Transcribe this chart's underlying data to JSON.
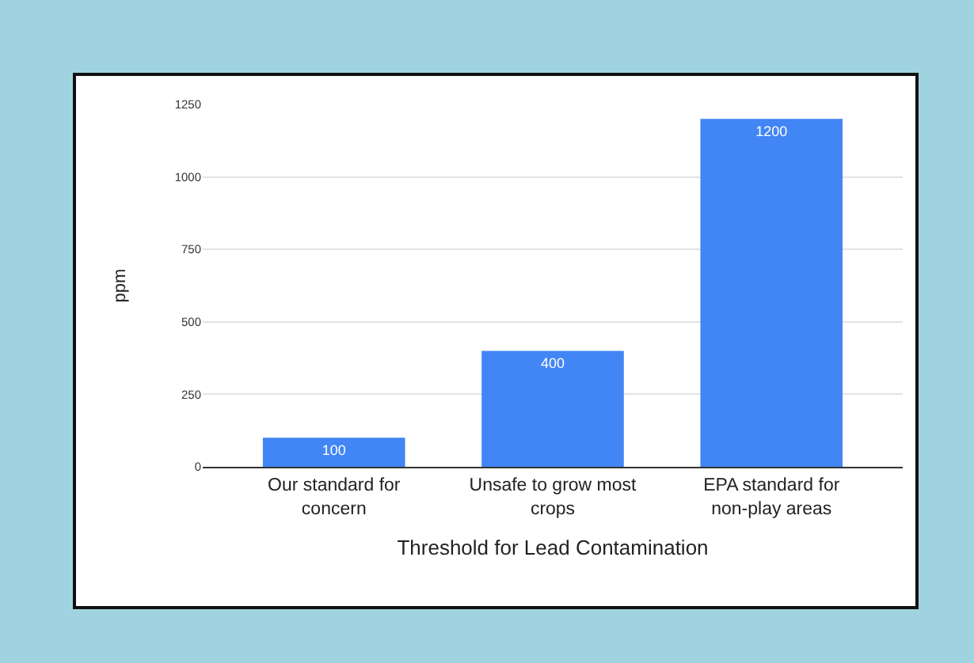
{
  "chart_data": {
    "type": "bar",
    "xlabel": "Threshold for Lead Contamination",
    "ylabel": "ppm",
    "categories": [
      "Our standard for concern",
      "Unsafe to grow most crops",
      "EPA standard for non-play areas"
    ],
    "values": [
      100,
      400,
      1200
    ],
    "color": "#4285f4",
    "ylim": [
      0,
      1250
    ],
    "yticks": [
      0,
      250,
      500,
      750,
      1000,
      1250
    ],
    "grid": "y",
    "data_labels": true
  }
}
